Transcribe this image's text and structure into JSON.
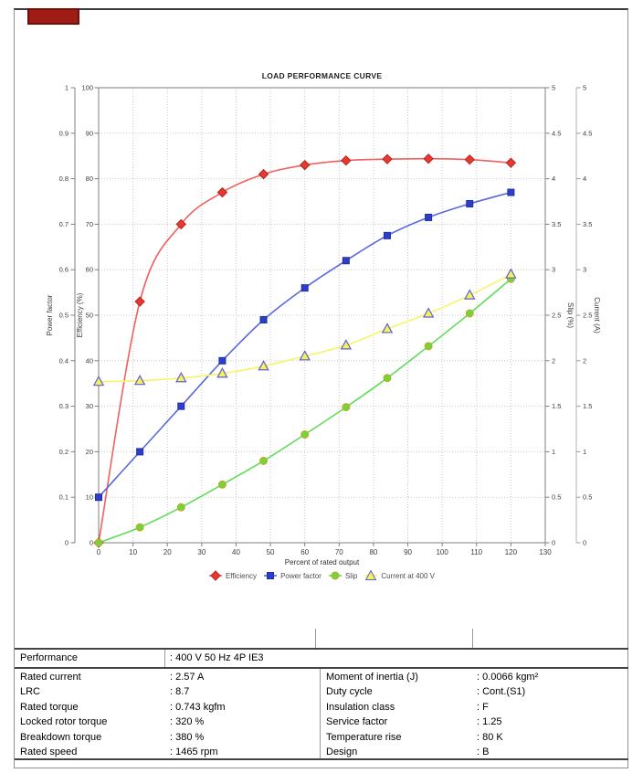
{
  "page": {
    "background": "#ffffff",
    "border_color": "#8f8f8f"
  },
  "annotation_box": {
    "fill": "#9e1c13",
    "border": "#6d100a"
  },
  "chart_data": {
    "type": "line",
    "title": "LOAD PERFORMANCE CURVE",
    "xlabel": "Percent of rated output",
    "x_range": [
      0,
      130
    ],
    "x_tick_step": 10,
    "grid": "dotted",
    "legend_position": "bottom",
    "axes": [
      {
        "id": "power_factor",
        "label": "Power factor",
        "side": "left-outer",
        "range": [
          0,
          1
        ],
        "tick_step": 0.1
      },
      {
        "id": "efficiency",
        "label": "Efficiency (%)",
        "side": "left-inner",
        "range": [
          0,
          100
        ],
        "tick_step": 10
      },
      {
        "id": "slip",
        "label": "Slip (%)",
        "side": "right-inner",
        "range": [
          0,
          5
        ],
        "tick_step": 0.5
      },
      {
        "id": "current",
        "label": "Current (A)",
        "side": "right-outer",
        "range": [
          0,
          5
        ],
        "tick_step": 0.5
      }
    ],
    "x": [
      0,
      12,
      24,
      36,
      48,
      60,
      72,
      84,
      96,
      108,
      120
    ],
    "series": [
      {
        "name": "Efficiency",
        "axis": "efficiency",
        "marker": "diamond",
        "line_color": "#f15f5f",
        "marker_fill": "#e8382f",
        "marker_stroke": "#b3241d",
        "values": [
          0,
          53,
          70,
          77,
          81,
          83,
          84,
          84.3,
          84.4,
          84.2,
          83.5
        ]
      },
      {
        "name": "Power factor",
        "axis": "power_factor",
        "marker": "square",
        "line_color": "#5968de",
        "marker_fill": "#2b3ecc",
        "marker_stroke": "#202f9c",
        "values": [
          0.1,
          0.2,
          0.3,
          0.4,
          0.49,
          0.56,
          0.62,
          0.675,
          0.715,
          0.745,
          0.77
        ]
      },
      {
        "name": "Slip",
        "axis": "slip",
        "marker": "circle",
        "line_color": "#5ede58",
        "marker_fill": "#72d636",
        "marker_stroke": "#cfa12e",
        "values": [
          0,
          0.17,
          0.39,
          0.64,
          0.9,
          1.19,
          1.49,
          1.81,
          2.16,
          2.52,
          2.9
        ]
      },
      {
        "name": "Current at 400 V",
        "axis": "current",
        "marker": "triangle",
        "line_color": "#f6f468",
        "marker_fill": "#f5f258",
        "marker_stroke": "#5f5fd8",
        "values": [
          1.77,
          1.78,
          1.81,
          1.86,
          1.94,
          2.05,
          2.17,
          2.35,
          2.52,
          2.72,
          2.95
        ]
      }
    ]
  },
  "table": {
    "performance_row": {
      "label": "Performance",
      "value": ": 400 V 50 Hz 4P IE3"
    },
    "left_rows": [
      {
        "label": "Rated current",
        "value": ": 2.57 A"
      },
      {
        "label": "LRC",
        "value": ": 8.7"
      },
      {
        "label": "Rated torque",
        "value": ": 0.743 kgfm"
      },
      {
        "label": "Locked rotor torque",
        "value": ": 320 %"
      },
      {
        "label": "Breakdown torque",
        "value": ": 380 %"
      },
      {
        "label": "Rated speed",
        "value": ": 1465 rpm"
      }
    ],
    "right_rows": [
      {
        "label": "Moment of inertia (J)",
        "value": ": 0.0066 kgm²"
      },
      {
        "label": "Duty cycle",
        "value": ": Cont.(S1)"
      },
      {
        "label": "Insulation class",
        "value": ": F"
      },
      {
        "label": "Service factor",
        "value": ": 1.25"
      },
      {
        "label": "Temperature rise",
        "value": ": 80 K"
      },
      {
        "label": "Design",
        "value": ": B"
      }
    ]
  }
}
